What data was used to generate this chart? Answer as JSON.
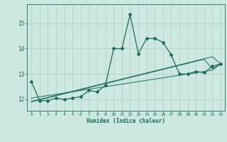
{
  "xlabel": "Humidex (Indice chaleur)",
  "bg_color": "#cce8e0",
  "grid_color": "#aacfc8",
  "line_color": "#1a6b58",
  "xlim": [
    -0.5,
    23.5
  ],
  "ylim": [
    11.55,
    15.75
  ],
  "yticks": [
    12,
    13,
    14,
    15
  ],
  "xticks": [
    0,
    1,
    2,
    3,
    4,
    5,
    6,
    7,
    8,
    9,
    10,
    11,
    12,
    13,
    14,
    15,
    16,
    17,
    18,
    19,
    20,
    21,
    22,
    23
  ],
  "main_series": [
    12.7,
    11.95,
    11.95,
    12.05,
    12.0,
    12.05,
    12.1,
    12.35,
    12.3,
    12.55,
    14.0,
    14.0,
    15.35,
    13.8,
    14.4,
    14.4,
    14.25,
    13.75,
    13.0,
    13.0,
    13.1,
    13.05,
    13.3,
    13.4
  ],
  "linear1": [
    11.92,
    12.0,
    12.08,
    12.16,
    12.24,
    12.32,
    12.4,
    12.48,
    12.56,
    12.64,
    12.72,
    12.8,
    12.88,
    12.96,
    13.04,
    13.12,
    13.2,
    13.28,
    13.36,
    13.44,
    13.52,
    13.6,
    13.68,
    13.4
  ],
  "linear2": [
    11.9,
    11.98,
    12.06,
    12.14,
    12.22,
    12.3,
    12.38,
    12.46,
    12.54,
    12.62,
    12.7,
    12.78,
    12.86,
    12.94,
    13.02,
    13.1,
    13.18,
    13.26,
    13.34,
    13.42,
    13.5,
    13.58,
    13.2,
    13.4
  ],
  "linear3": [
    12.05,
    12.1,
    12.15,
    12.2,
    12.25,
    12.3,
    12.35,
    12.4,
    12.45,
    12.5,
    12.55,
    12.6,
    12.65,
    12.7,
    12.75,
    12.8,
    12.85,
    12.9,
    12.95,
    13.0,
    13.05,
    13.1,
    13.15,
    13.4
  ]
}
